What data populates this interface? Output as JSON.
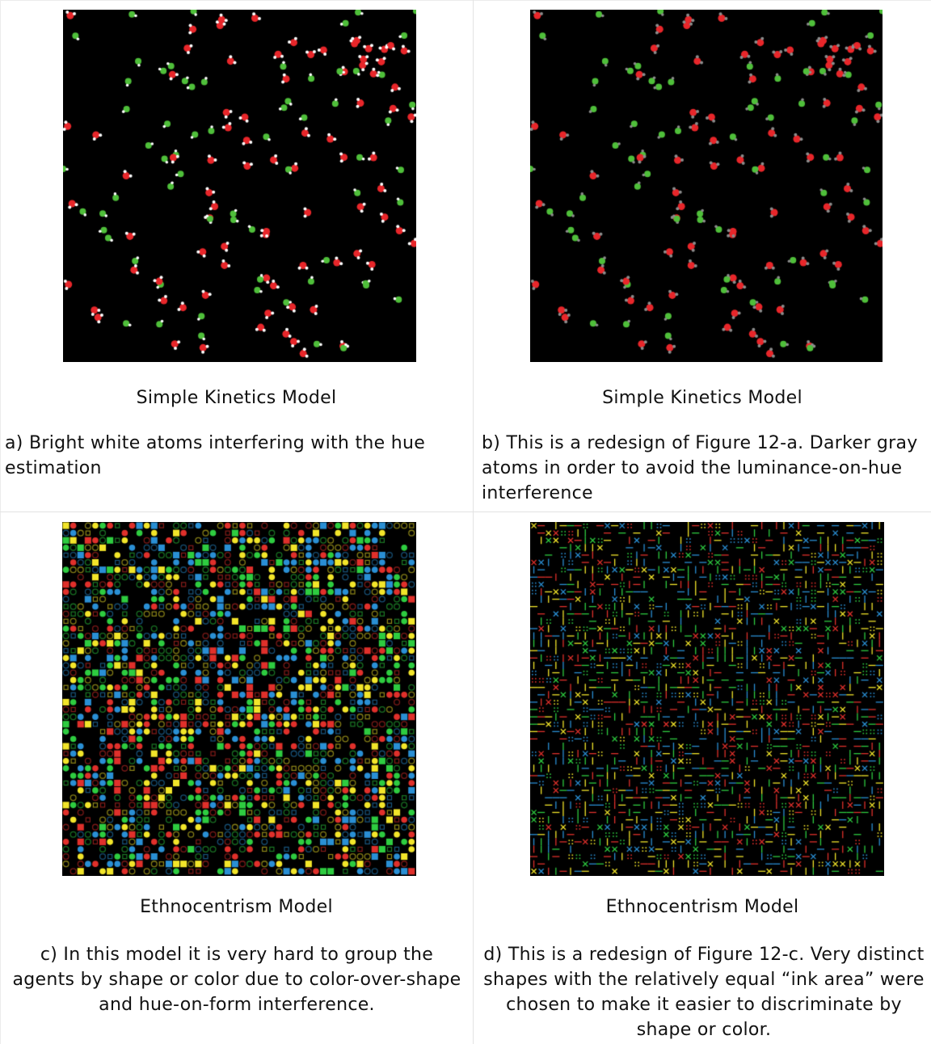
{
  "panels": [
    {
      "id": "a",
      "model_title": "Simple Kinetics Model",
      "caption": "a) Bright white atoms interfering with the hue estimation",
      "atom_color": "#ffffff"
    },
    {
      "id": "b",
      "model_title": "Simple Kinetics Model",
      "caption": "b) This is a redesign of Figure 12-a. Darker gray atoms in order to avoid the luminance-on-hue interference",
      "atom_color": "#8c8c8c"
    },
    {
      "id": "c",
      "model_title": "Ethnocentrism Model",
      "caption": "c) In this model it is very hard to group the agents by shape or color due to color-over-shape and hue-on-form interference."
    },
    {
      "id": "d",
      "model_title": "Ethnocentrism Model",
      "caption": "d) This is a redesign of Figure 12-c. Very distinct shapes with the relatively equal “ink area” were chosen to make it easier to discriminate by shape or color."
    }
  ],
  "colors": {
    "background": "#000000",
    "oxygen": "#e8262a",
    "green_molecule": "#4fbf3a",
    "agent_red": "#e0302b",
    "agent_green": "#2ecc40",
    "agent_blue": "#2a8fd4",
    "agent_yellow": "#f2e52a"
  }
}
